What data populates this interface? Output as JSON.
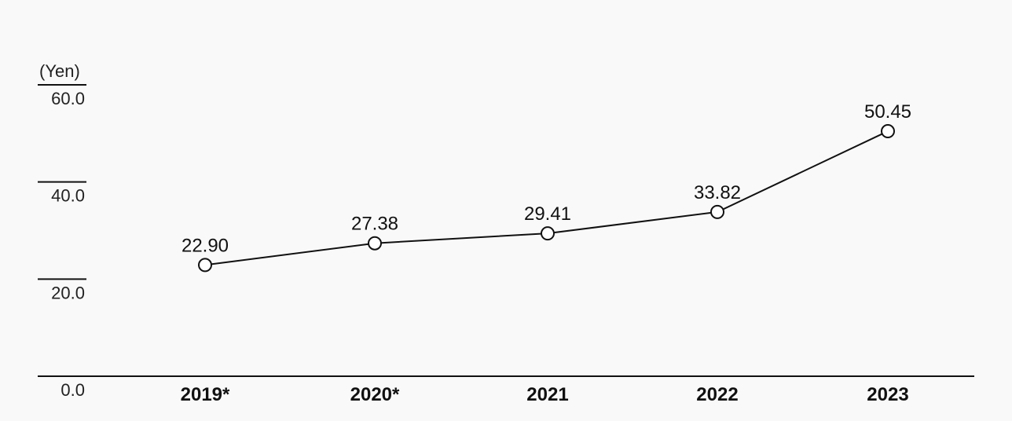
{
  "chart_data": {
    "type": "line",
    "unit_label": "(Yen)",
    "categories": [
      "2019*",
      "2020*",
      "2021",
      "2022",
      "2023"
    ],
    "series": [
      {
        "values": [
          22.9,
          27.38,
          29.41,
          33.82,
          50.45
        ]
      }
    ],
    "data_labels": [
      "22.90",
      "27.38",
      "29.41",
      "33.82",
      "50.45"
    ],
    "y_ticks": [
      "0.0",
      "20.0",
      "40.0",
      "60.0"
    ],
    "y_tick_values": [
      0,
      20,
      40,
      60
    ],
    "ylim": [
      0,
      60
    ],
    "grid": false,
    "colors": {
      "line": "#111111",
      "marker_fill": "#ffffff",
      "background": "#f9f9f9"
    }
  }
}
